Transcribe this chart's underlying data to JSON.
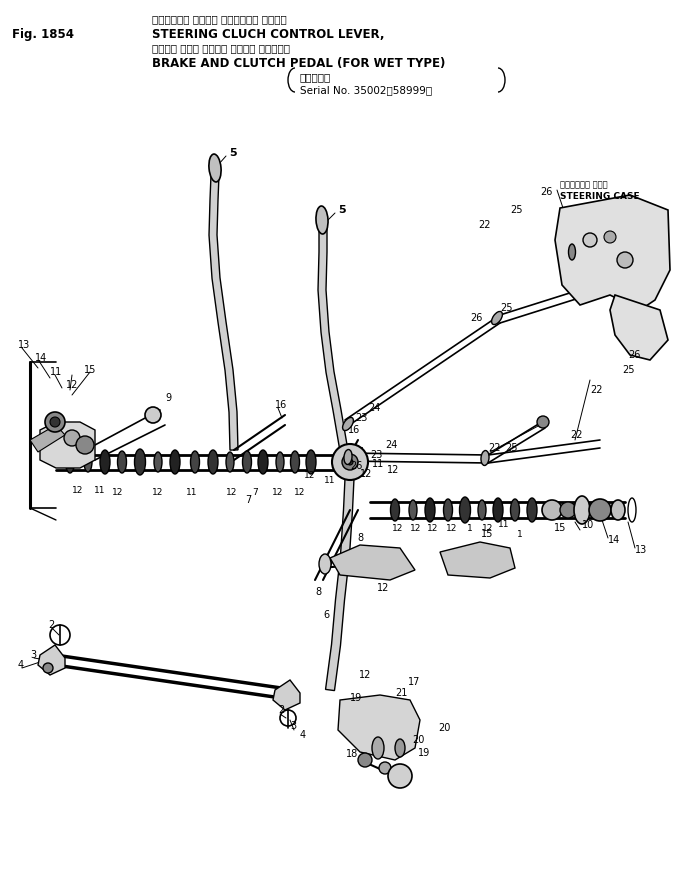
{
  "title_line1": "ステアリング クラッチ コントロール レバー、",
  "title_line2": "STEERING CLUCH CONTROL LEVER,",
  "title_line3": "ブレーキ および クラッチ ペダル　 湿　式　用",
  "title_line4": "BRAKE AND CLUTCH PEDAL (FOR WET TYPE)",
  "title_serial_jp": "（適用号機",
  "title_serial_en": "Serial No. 35002～58999）",
  "fig_label": "Fig. 1854",
  "steering_case_jp": "ステアリング ケース",
  "steering_case_en": "STEERING CASE",
  "bg_color": "#ffffff",
  "line_color": "#000000",
  "fig_width": 6.87,
  "fig_height": 8.91
}
